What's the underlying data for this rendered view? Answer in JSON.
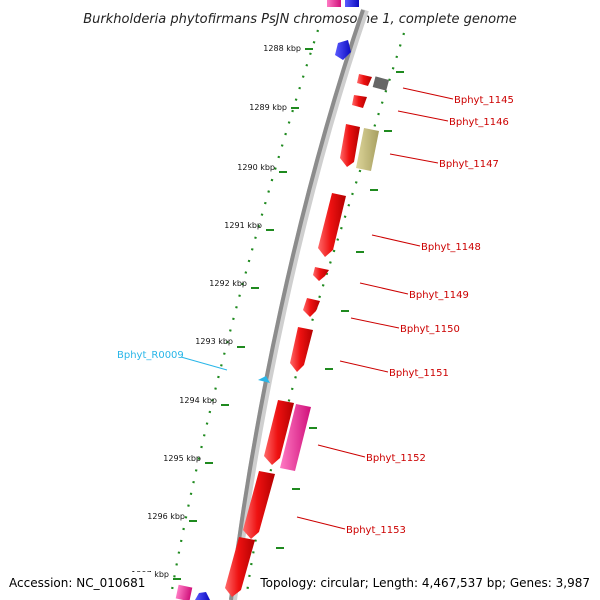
{
  "title": "Burkholderia phytofirmans PsJN chromosome 1, complete genome",
  "footer": {
    "accession": "Accession: NC_010681",
    "summary": "Topology: circular; Length: 4,467,537 bp; Genes: 3,987"
  },
  "ticks": [
    "1288 kbp",
    "1289 kbp",
    "1290 kbp",
    "1291 kbp",
    "1292 kbp",
    "1293 kbp",
    "1294 kbp",
    "1295 kbp",
    "1296 kbp",
    "1297 kbp"
  ],
  "gene_labels": [
    "Bphyt_1145",
    "Bphyt_1146",
    "Bphyt_1147",
    "Bphyt_1148",
    "Bphyt_1149",
    "Bphyt_1150",
    "Bphyt_1151",
    "Bphyt_1152",
    "Bphyt_1153"
  ],
  "rna_label": "Bphyt_R0009",
  "colors": {
    "cds": "#ee1111",
    "rna": "#29b6e8",
    "backbone": "#999999",
    "dotted_ring": "#1f8a1f",
    "other_blue": "#1a1aee",
    "other_pink": "#e8208a",
    "other_grey": "#666666",
    "other_olive": "#c2b87a"
  }
}
